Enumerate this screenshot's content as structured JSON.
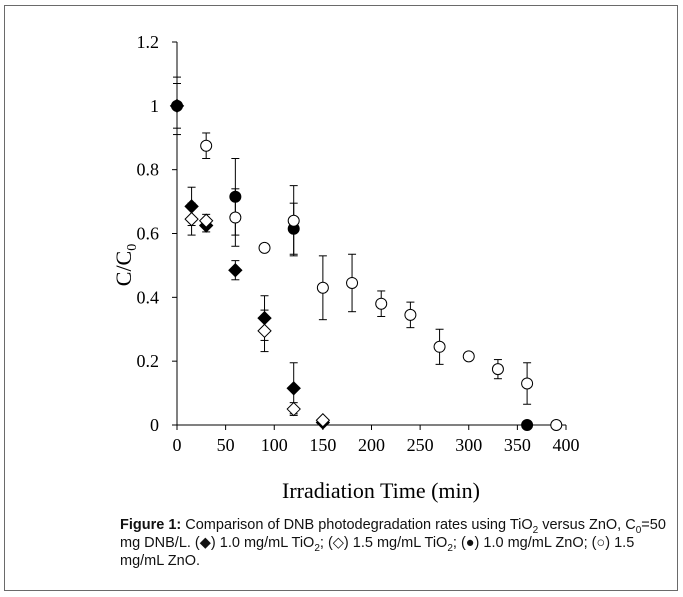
{
  "chart_data": {
    "type": "scatter",
    "xlabel": "Irradiation Time (min)",
    "ylabel_main": "C/C",
    "ylabel_sub": "0",
    "xlim": [
      0,
      400
    ],
    "ylim": [
      0,
      1.2
    ],
    "x_ticks": [
      "0",
      "50",
      "100",
      "150",
      "200",
      "250",
      "300",
      "350",
      "400"
    ],
    "y_ticks": [
      "0",
      "0.2",
      "0.4",
      "0.6",
      "0.8",
      "1",
      "1.2"
    ],
    "grid": false,
    "series": [
      {
        "marker": "filled-diamond",
        "points": [
          {
            "x": 0,
            "y": 1.0,
            "err": 0.09
          },
          {
            "x": 15,
            "y": 0.685,
            "err": 0.06
          },
          {
            "x": 30,
            "y": 0.625,
            "err": 0.02
          },
          {
            "x": 60,
            "y": 0.485,
            "err": 0.03
          },
          {
            "x": 90,
            "y": 0.335,
            "err": 0.07
          },
          {
            "x": 120,
            "y": 0.115,
            "err": 0.08
          },
          {
            "x": 150,
            "y": 0.008,
            "err": 0.005
          }
        ]
      },
      {
        "marker": "open-diamond",
        "points": [
          {
            "x": 15,
            "y": 0.645,
            "err": 0.05
          },
          {
            "x": 30,
            "y": 0.64,
            "err": 0.02
          },
          {
            "x": 90,
            "y": 0.295,
            "err": 0.065
          },
          {
            "x": 120,
            "y": 0.05,
            "err": 0.02
          },
          {
            "x": 150,
            "y": 0.015,
            "err": 0.005
          }
        ]
      },
      {
        "marker": "filled-circle",
        "points": [
          {
            "x": 0,
            "y": 1.0,
            "err": 0.07
          },
          {
            "x": 60,
            "y": 0.715,
            "err": 0.12
          },
          {
            "x": 120,
            "y": 0.615,
            "err": 0.08
          },
          {
            "x": 360,
            "y": 0.0,
            "err": 0
          }
        ]
      },
      {
        "marker": "open-circle",
        "points": [
          {
            "x": 30,
            "y": 0.875,
            "err": 0.04
          },
          {
            "x": 60,
            "y": 0.65,
            "err": 0.09
          },
          {
            "x": 90,
            "y": 0.555,
            "err": 0.005
          },
          {
            "x": 120,
            "y": 0.64,
            "err": 0.11
          },
          {
            "x": 150,
            "y": 0.43,
            "err": 0.1
          },
          {
            "x": 180,
            "y": 0.445,
            "err": 0.09
          },
          {
            "x": 210,
            "y": 0.38,
            "err": 0.04
          },
          {
            "x": 240,
            "y": 0.345,
            "err": 0.04
          },
          {
            "x": 270,
            "y": 0.245,
            "err": 0.055
          },
          {
            "x": 300,
            "y": 0.215,
            "err": 0.01
          },
          {
            "x": 330,
            "y": 0.175,
            "err": 0.03
          },
          {
            "x": 360,
            "y": 0.13,
            "err": 0.065
          },
          {
            "x": 390,
            "y": 0.0,
            "err": 0
          }
        ]
      }
    ]
  },
  "caption": {
    "label": "Figure 1:",
    "t1": " Comparison of DNB photodegradation rates using TiO",
    "s1": "2",
    "t2": " versus ZnO, C",
    "s2": "0",
    "t3": "=50 mg DNB/L. (◆) 1.0 mg/mL TiO",
    "s3": "2",
    "t4": "; (◇) 1.5 mg/mL TiO",
    "s4": "2",
    "t5": "; (●) 1.0 mg/mL ZnO; (○) 1.5 mg/mL ZnO."
  }
}
